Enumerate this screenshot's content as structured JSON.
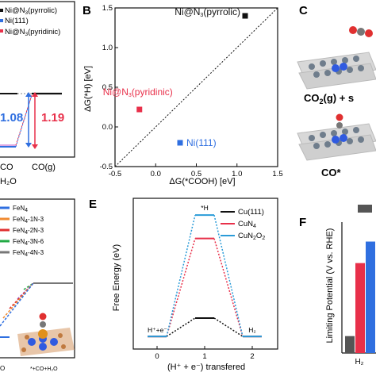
{
  "panels": {
    "A": {
      "legend": [
        "Ni@N",
        "3",
        "(pyrrolic)",
        "Ni(111)",
        "Ni@N",
        "3",
        "(pyridinic)"
      ],
      "values": [
        "1.08",
        "1.19"
      ],
      "xticks": [
        "CO",
        "CO(g)"
      ],
      "bottom": "H₂O"
    },
    "B": {
      "label": "B",
      "chart_data": {
        "type": "scatter",
        "xlabel": "ΔG(*COOH) [eV]",
        "ylabel": "ΔG(*H) [eV]",
        "xlim": [
          -0.5,
          1.5
        ],
        "ylim": [
          -0.5,
          1.5
        ],
        "xticks": [
          "-0.5",
          "0.0",
          "0.5",
          "1.0",
          "1.5"
        ],
        "yticks": [
          "-0.5",
          "0.0",
          "0.5",
          "1.0",
          "1.5"
        ],
        "points": [
          {
            "name": "Ni@N3(pyrrolic)",
            "label": [
              "Ni@N",
              "3",
              "(pyrrolic)"
            ],
            "x": 1.1,
            "y": 1.4,
            "color": "#111111"
          },
          {
            "name": "Ni@N3(pyridinic)",
            "label": [
              "Ni@N",
              "3",
              "(pyridinic)"
            ],
            "x": -0.2,
            "y": 0.22,
            "color": "#e8304a"
          },
          {
            "name": "Ni(111)",
            "label": [
              "Ni(111)"
            ],
            "x": 0.3,
            "y": -0.2,
            "color": "#2f6fe0"
          }
        ],
        "diagonal": true
      }
    },
    "C": {
      "label": "C",
      "captions": [
        "CO",
        "2",
        "(g) + s",
        "CO*"
      ]
    },
    "D": {
      "legend": [
        "FeN",
        "4",
        "FeN",
        "4",
        "-1N-3",
        "FeN",
        "4",
        "-2N-3",
        "FeN",
        "4",
        "-3N-6",
        "FeN",
        "4",
        "-4N-3"
      ],
      "xticks": [
        "O",
        "*+CO+H₂O"
      ]
    },
    "E": {
      "label": "E",
      "chart_data": {
        "type": "line",
        "ylabel": "Free Energy (eV)",
        "xlabel": "(H⁺ + e⁻) transfered",
        "xticks": [
          "0",
          "1",
          "2"
        ],
        "annotations": [
          "H⁺+e⁻",
          "*H",
          "H₂"
        ],
        "series": [
          {
            "name": "Cu(111)",
            "values": [
              0,
              0.22,
              0
            ],
            "color": "#111111"
          },
          {
            "name": "CuN4",
            "values": [
              0,
              1.17,
              0
            ],
            "color": "#e8304a"
          },
          {
            "name": "CuN2O2",
            "values": [
              0,
              1.45,
              0
            ],
            "color": "#2a9bd8"
          }
        ],
        "legend": [
          [
            "Cu(111)"
          ],
          [
            "CuN",
            "4"
          ],
          [
            "CuN",
            "2",
            "O",
            "2"
          ]
        ]
      }
    },
    "F": {
      "label": "F",
      "chart_data": {
        "type": "bar",
        "ylabel": "Limiting Potential (V vs. RHE)",
        "categories": [
          "H₂"
        ],
        "series": [
          {
            "values": [
              0.22
            ],
            "color": "#555555"
          },
          {
            "values": [
              1.17
            ],
            "color": "#e8304a"
          },
          {
            "values": [
              1.45
            ],
            "color": "#2f6fe0"
          }
        ]
      }
    }
  }
}
